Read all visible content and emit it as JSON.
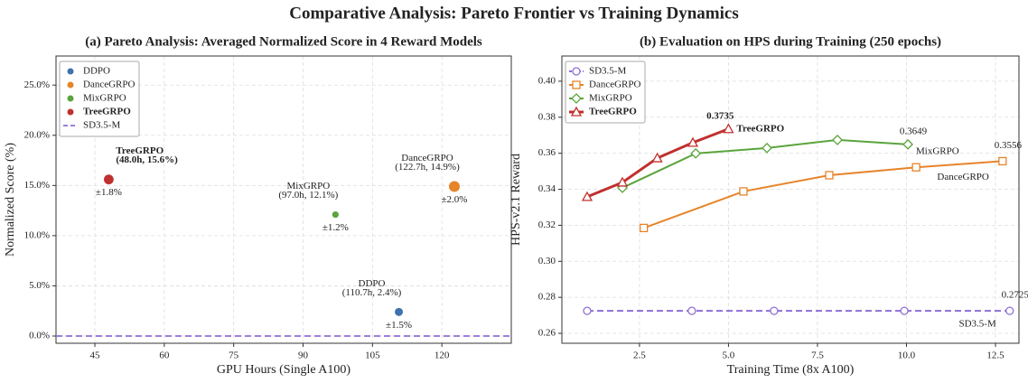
{
  "title": "Comparative Analysis: Pareto Frontier vs Training Dynamics",
  "chart_data": [
    {
      "type": "scatter",
      "title": "(a) Pareto Analysis: Averaged Normalized Score in 4 Reward Models",
      "x_label": "GPU Hours (Single A100)",
      "y_label": "Normalized Score (%)",
      "xlim": [
        36.6,
        135
      ],
      "ylim": [
        -0.72,
        27.9
      ],
      "xticks": [
        45,
        60,
        75,
        90,
        105,
        120
      ],
      "yticks": [
        {
          "value": 0,
          "label": "0.0%"
        },
        {
          "value": 5,
          "label": "5.0%"
        },
        {
          "value": 10,
          "label": "10.0%"
        },
        {
          "value": 15,
          "label": "15.0%"
        },
        {
          "value": 20,
          "label": "20.0%"
        },
        {
          "value": 25,
          "label": "25.0%"
        }
      ],
      "grid": true,
      "legend": "upper left",
      "series": [
        {
          "name": "DDPO",
          "color": "#3f72af",
          "x": [
            110.7
          ],
          "values": [
            2.4
          ],
          "label": "(110.7h, 2.4%)",
          "errors": [
            1.5
          ],
          "error_labels": [
            "±1.5%"
          ]
        },
        {
          "name": "DanceGRPO",
          "color": "#e6842a",
          "x": [
            122.7
          ],
          "values": [
            14.9
          ],
          "label": "(122.7h, 14.9%)",
          "errors": [
            2.0
          ],
          "error_labels": [
            "±2.0%"
          ]
        },
        {
          "name": "MixGRPO",
          "color": "#5aa43c",
          "x": [
            97.0
          ],
          "values": [
            12.1
          ],
          "label": "(97.0h, 12.1%)",
          "errors": [
            1.2
          ],
          "error_labels": [
            "±1.2%"
          ]
        },
        {
          "name": "TreeGRPO",
          "color": "#c0302e",
          "x": [
            48.0
          ],
          "values": [
            15.6
          ],
          "label": "(48.0h, 15.6%)",
          "errors": [
            1.8
          ],
          "error_labels": [
            "±1.8%"
          ],
          "bold": true
        }
      ],
      "hlines": [
        {
          "name": "SD3.5-M",
          "value": 0,
          "color": "#8e6fd6",
          "linestyle": "dashed"
        }
      ]
    },
    {
      "type": "line",
      "title": "(b) Evaluation on HPS during Training (250 epochs)",
      "x_label": "Training Time (8x A100)",
      "y_label": "HPS-v2.1 Reward",
      "xlim": [
        0.32,
        13.16
      ],
      "ylim": [
        0.2545,
        0.414
      ],
      "xticks": [
        2.5,
        {
          "value": 5,
          "label": "5.0"
        },
        7.5,
        {
          "value": 10,
          "label": "10.0"
        },
        12.5
      ],
      "yticks": [
        0.26,
        0.28,
        {
          "value": 0.3,
          "label": "0.30"
        },
        0.32,
        0.34,
        0.36,
        0.38,
        {
          "value": 0.4,
          "label": "0.40"
        }
      ],
      "grid": true,
      "legend": "upper left",
      "series": [
        {
          "name": "SD3.5-M",
          "color": "#8e6fd6",
          "marker": "circle",
          "linestyle": "dashed",
          "linewidth": 2,
          "x": [
            1.03,
            3.97,
            6.28,
            9.94,
            12.9
          ],
          "values": [
            0.2725,
            0.2725,
            0.2725,
            0.2725,
            0.2725
          ]
        },
        {
          "name": "DanceGRPO",
          "color": "#e6842a",
          "marker": "square",
          "linestyle": "solid",
          "linewidth": 2,
          "x": [
            2.62,
            5.42,
            7.83,
            10.27,
            12.7
          ],
          "values": [
            0.3185,
            0.3388,
            0.3478,
            0.3522,
            0.3556
          ]
        },
        {
          "name": "MixGRPO",
          "color": "#5aa43c",
          "marker": "diamond",
          "linestyle": "solid",
          "linewidth": 2,
          "x": [
            2.02,
            4.08,
            6.08,
            8.06,
            10.04
          ],
          "values": [
            0.3408,
            0.3599,
            0.3629,
            0.3674,
            0.3649
          ]
        },
        {
          "name": "TreeGRPO",
          "color": "#c0302e",
          "marker": "triangle",
          "linestyle": "solid",
          "linewidth": 3,
          "bold": true,
          "x": [
            1.03,
            2.02,
            3.0,
            4.0,
            5.0
          ],
          "values": [
            0.3358,
            0.3438,
            0.3573,
            0.3659,
            0.3735
          ]
        }
      ]
    }
  ]
}
